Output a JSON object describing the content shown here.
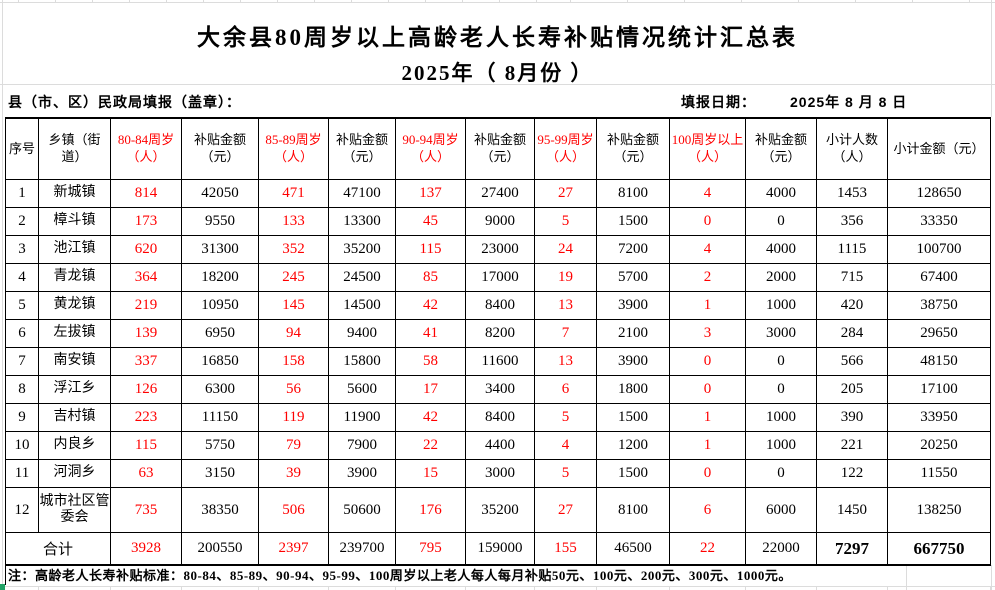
{
  "title": {
    "line1": "大余县80周岁以上高龄老人长寿补贴情况统计汇总表",
    "line2": "2025年（ 8月份 ）"
  },
  "meta": {
    "left_label": "县（市、区）民政局填报（盖章）：",
    "date_label": "填报日期：",
    "date_value": "2025年 8 月 8 日"
  },
  "table": {
    "headers": [
      {
        "label": "序号",
        "red": false
      },
      {
        "label": "乡镇（街道）",
        "red": false
      },
      {
        "label": "80-84周岁（人）",
        "red": true
      },
      {
        "label": "补贴金额（元）",
        "red": false
      },
      {
        "label": "85-89周岁（人）",
        "red": true
      },
      {
        "label": "补贴金额（元）",
        "red": false
      },
      {
        "label": "90-94周岁（人）",
        "red": true
      },
      {
        "label": "补贴金额（元）",
        "red": false
      },
      {
        "label": "95-99周岁（人）",
        "red": true
      },
      {
        "label": "补贴金额（元）",
        "red": false
      },
      {
        "label": "100周岁以上（人）",
        "red": true
      },
      {
        "label": "补贴金额（元）",
        "red": false
      },
      {
        "label": "小计人数（人）",
        "red": false
      },
      {
        "label": "小计金额（元）",
        "red": false
      }
    ],
    "rows": [
      {
        "no": "1",
        "name": "新城镇",
        "values": [
          814,
          42050,
          471,
          47100,
          137,
          27400,
          27,
          8100,
          4,
          4000,
          1453,
          128650
        ]
      },
      {
        "no": "2",
        "name": "樟斗镇",
        "values": [
          173,
          9550,
          133,
          13300,
          45,
          9000,
          5,
          1500,
          0,
          0,
          356,
          33350
        ]
      },
      {
        "no": "3",
        "name": "池江镇",
        "values": [
          620,
          31300,
          352,
          35200,
          115,
          23000,
          24,
          7200,
          4,
          4000,
          1115,
          100700
        ]
      },
      {
        "no": "4",
        "name": "青龙镇",
        "values": [
          364,
          18200,
          245,
          24500,
          85,
          17000,
          19,
          5700,
          2,
          2000,
          715,
          67400
        ]
      },
      {
        "no": "5",
        "name": "黄龙镇",
        "values": [
          219,
          10950,
          145,
          14500,
          42,
          8400,
          13,
          3900,
          1,
          1000,
          420,
          38750
        ]
      },
      {
        "no": "6",
        "name": "左拔镇",
        "values": [
          139,
          6950,
          94,
          9400,
          41,
          8200,
          7,
          2100,
          3,
          3000,
          284,
          29650
        ]
      },
      {
        "no": "7",
        "name": "南安镇",
        "values": [
          337,
          16850,
          158,
          15800,
          58,
          11600,
          13,
          3900,
          0,
          0,
          566,
          48150
        ]
      },
      {
        "no": "8",
        "name": "浮江乡",
        "values": [
          126,
          6300,
          56,
          5600,
          17,
          3400,
          6,
          1800,
          0,
          0,
          205,
          17100
        ]
      },
      {
        "no": "9",
        "name": "吉村镇",
        "values": [
          223,
          11150,
          119,
          11900,
          42,
          8400,
          5,
          1500,
          1,
          1000,
          390,
          33950
        ]
      },
      {
        "no": "10",
        "name": "内良乡",
        "values": [
          115,
          5750,
          79,
          7900,
          22,
          4400,
          4,
          1200,
          1,
          1000,
          221,
          20250
        ]
      },
      {
        "no": "11",
        "name": "河洞乡",
        "values": [
          63,
          3150,
          39,
          3900,
          15,
          3000,
          5,
          1500,
          0,
          0,
          122,
          11550
        ]
      },
      {
        "no": "12",
        "name": "城市社区管委会",
        "values": [
          735,
          38350,
          506,
          50600,
          176,
          35200,
          27,
          8100,
          6,
          6000,
          1450,
          138250
        ]
      }
    ],
    "total": {
      "label": "合计",
      "values": [
        3928,
        200550,
        2397,
        239700,
        795,
        159000,
        155,
        46500,
        22,
        22000,
        7297,
        667750
      ]
    }
  },
  "note": "注：高龄老人长寿补贴标准：80-84、85-89、90-94、95-99、100周岁以上老人每人每月补贴50元、100元、200元、300元、1000元。",
  "colors": {
    "highlight_red": "#ff0000",
    "text_black": "#000000",
    "gridline_light": "#dcdcdc",
    "green_marker": "#21a366"
  }
}
